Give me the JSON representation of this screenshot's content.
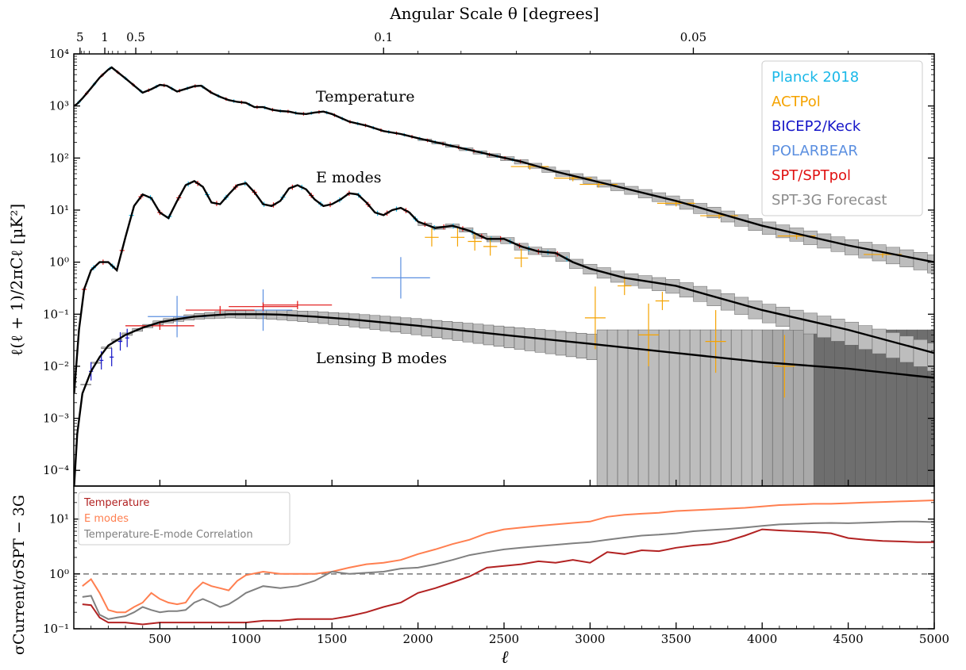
{
  "chart_data": [
    {
      "type": "line",
      "title": "",
      "top_axis_label": "Angular Scale θ [degrees]",
      "top_ticks": [
        "5",
        "1",
        "0.5",
        "0.1",
        "0.05"
      ],
      "xlabel": "",
      "ylabel": "ℓ(ℓ + 1)/2πCℓ [μK²]",
      "xlim": [
        0,
        5000
      ],
      "ylim": [
        5e-05,
        10000
      ],
      "yscale": "log",
      "y_ticks": [
        "10⁻⁴",
        "10⁻³",
        "10⁻²",
        "10⁻¹",
        "10⁰",
        "10¹",
        "10²",
        "10³",
        "10⁴"
      ],
      "annotations": [
        "Temperature",
        "E modes",
        "Lensing B modes"
      ],
      "legend_position": "top-right",
      "legend": [
        {
          "name": "Planck 2018",
          "color": "#1ab8e8"
        },
        {
          "name": "ACTPol",
          "color": "#f5a300"
        },
        {
          "name": "BICEP2/Keck",
          "color": "#1515c8"
        },
        {
          "name": "POLARBEAR",
          "color": "#5b8fe0"
        },
        {
          "name": "SPT/SPTpol",
          "color": "#e01010"
        },
        {
          "name": "SPT-3G Forecast",
          "color": "#8c8c8c"
        }
      ],
      "series": [
        {
          "name": "Temperature",
          "x": [
            2,
            20,
            50,
            100,
            150,
            200,
            220,
            300,
            400,
            450,
            500,
            540,
            600,
            700,
            740,
            800,
            850,
            900,
            950,
            1000,
            1050,
            1100,
            1150,
            1200,
            1250,
            1300,
            1350,
            1400,
            1450,
            1500,
            1600,
            1700,
            1800,
            1900,
            2000,
            2200,
            2400,
            2600,
            2800,
            3000,
            3500,
            4000,
            4500,
            5000
          ],
          "y": [
            1000,
            1100,
            1400,
            2200,
            3500,
            5000,
            5500,
            3400,
            1800,
            2100,
            2550,
            2450,
            1900,
            2400,
            2450,
            1800,
            1500,
            1300,
            1200,
            1150,
            950,
            950,
            850,
            800,
            780,
            720,
            700,
            750,
            780,
            700,
            500,
            420,
            330,
            290,
            240,
            170,
            120,
            85,
            55,
            38,
            15,
            5,
            2.1,
            1.0
          ]
        },
        {
          "name": "E modes",
          "x": [
            2,
            30,
            60,
            100,
            150,
            200,
            250,
            300,
            350,
            400,
            450,
            500,
            550,
            600,
            650,
            700,
            750,
            800,
            850,
            900,
            950,
            1000,
            1050,
            1100,
            1150,
            1200,
            1250,
            1300,
            1350,
            1400,
            1450,
            1500,
            1550,
            1600,
            1650,
            1700,
            1750,
            1800,
            1850,
            1900,
            1950,
            2000,
            2100,
            2200,
            2300,
            2400,
            2500,
            2600,
            2700,
            2800,
            2900,
            3000,
            3200,
            3500,
            4000,
            4500,
            5000
          ],
          "y": [
            0.003,
            0.05,
            0.3,
            0.7,
            1.0,
            1.0,
            0.7,
            3.0,
            12,
            20,
            17,
            9,
            7,
            15,
            30,
            36,
            28,
            14,
            13,
            20,
            30,
            33,
            22,
            13,
            12,
            15,
            26,
            30,
            25,
            16,
            12,
            13,
            16,
            21,
            20,
            14,
            9,
            8,
            10,
            11,
            9,
            6,
            4.5,
            5,
            4,
            2.8,
            2.8,
            2.0,
            1.6,
            1.5,
            1.0,
            0.75,
            0.5,
            0.35,
            0.12,
            0.05,
            0.018
          ]
        },
        {
          "name": "Lensing B modes",
          "x": [
            2,
            20,
            50,
            100,
            150,
            200,
            300,
            400,
            500,
            600,
            700,
            800,
            900,
            1000,
            1100,
            1200,
            1400,
            1600,
            2000,
            2500,
            3000,
            3500,
            4000,
            4500,
            5000
          ],
          "y": [
            5e-05,
            0.0005,
            0.003,
            0.008,
            0.015,
            0.025,
            0.04,
            0.055,
            0.07,
            0.08,
            0.09,
            0.095,
            0.1,
            0.1,
            0.1,
            0.098,
            0.09,
            0.08,
            0.06,
            0.04,
            0.027,
            0.018,
            0.012,
            0.009,
            0.006
          ]
        }
      ]
    },
    {
      "type": "line",
      "title": "",
      "xlabel": "ℓ",
      "ylabel": "σCurrent/σSPT − 3G",
      "xlim": [
        0,
        5000
      ],
      "x_ticks": [
        "500",
        "1000",
        "1500",
        "2000",
        "2500",
        "3000",
        "3500",
        "4000",
        "4500",
        "5000"
      ],
      "ylim": [
        0.1,
        40
      ],
      "yscale": "log",
      "y_ticks": [
        "10⁻¹",
        "10⁰",
        "10¹"
      ],
      "reference_line": 1.0,
      "legend_position": "top-left",
      "series": [
        {
          "name": "Temperature",
          "color": "#b22222",
          "x": [
            50,
            100,
            150,
            200,
            300,
            400,
            500,
            600,
            700,
            800,
            900,
            1000,
            1100,
            1200,
            1300,
            1400,
            1500,
            1600,
            1700,
            1800,
            1900,
            2000,
            2100,
            2200,
            2300,
            2400,
            2500,
            2600,
            2700,
            2800,
            2900,
            3000,
            3100,
            3200,
            3300,
            3400,
            3500,
            3600,
            3700,
            3800,
            3900,
            4000,
            4100,
            4200,
            4300,
            4400,
            4500,
            4600,
            4700,
            4800,
            4900,
            5000
          ],
          "y": [
            0.28,
            0.27,
            0.16,
            0.13,
            0.13,
            0.12,
            0.13,
            0.13,
            0.13,
            0.13,
            0.13,
            0.13,
            0.14,
            0.14,
            0.15,
            0.15,
            0.15,
            0.17,
            0.2,
            0.25,
            0.3,
            0.45,
            0.55,
            0.7,
            0.9,
            1.3,
            1.4,
            1.5,
            1.7,
            1.6,
            1.8,
            1.6,
            2.5,
            2.3,
            2.7,
            2.6,
            3.0,
            3.3,
            3.5,
            4.0,
            5.0,
            6.5,
            6.2,
            6.0,
            5.8,
            5.5,
            4.5,
            4.2,
            4.0,
            3.9,
            3.8,
            3.8
          ]
        },
        {
          "name": "E modes",
          "color": "#ff7f50",
          "x": [
            50,
            100,
            150,
            200,
            250,
            300,
            350,
            400,
            450,
            500,
            550,
            600,
            650,
            700,
            750,
            800,
            850,
            900,
            950,
            1000,
            1100,
            1200,
            1300,
            1400,
            1500,
            1600,
            1700,
            1800,
            1900,
            2000,
            2100,
            2200,
            2300,
            2400,
            2500,
            2600,
            2700,
            2800,
            2900,
            3000,
            3100,
            3200,
            3300,
            3400,
            3500,
            3600,
            3700,
            3800,
            3900,
            4000,
            4100,
            4200,
            4300,
            4400,
            4500,
            4600,
            4700,
            4800,
            4900,
            5000
          ],
          "y": [
            0.6,
            0.8,
            0.45,
            0.22,
            0.2,
            0.2,
            0.25,
            0.3,
            0.45,
            0.35,
            0.3,
            0.28,
            0.3,
            0.5,
            0.7,
            0.6,
            0.55,
            0.5,
            0.75,
            0.95,
            1.1,
            1.0,
            1.0,
            1.0,
            1.1,
            1.3,
            1.5,
            1.6,
            1.8,
            2.3,
            2.8,
            3.5,
            4.2,
            5.5,
            6.5,
            7.0,
            7.5,
            8.0,
            8.5,
            9.0,
            11,
            12,
            12.5,
            13,
            14,
            14.5,
            15,
            15.5,
            16,
            17,
            18,
            18.5,
            19,
            19,
            19.5,
            20,
            20.5,
            21,
            21.5,
            22
          ]
        },
        {
          "name": "Temperature-E-mode Correlation",
          "color": "#808080",
          "x": [
            50,
            100,
            150,
            200,
            250,
            300,
            350,
            400,
            450,
            500,
            550,
            600,
            650,
            700,
            750,
            800,
            850,
            900,
            950,
            1000,
            1100,
            1200,
            1300,
            1400,
            1500,
            1600,
            1700,
            1800,
            1900,
            2000,
            2100,
            2200,
            2300,
            2400,
            2500,
            2600,
            2700,
            2800,
            2900,
            3000,
            3100,
            3200,
            3300,
            3400,
            3500,
            3600,
            3700,
            3800,
            3900,
            4000,
            4100,
            4200,
            4300,
            4400,
            4500,
            4600,
            4700,
            4800,
            4900,
            5000
          ],
          "y": [
            0.38,
            0.4,
            0.18,
            0.15,
            0.16,
            0.17,
            0.2,
            0.25,
            0.22,
            0.2,
            0.21,
            0.21,
            0.22,
            0.3,
            0.35,
            0.3,
            0.25,
            0.28,
            0.35,
            0.45,
            0.6,
            0.55,
            0.6,
            0.75,
            1.1,
            1.0,
            1.05,
            1.1,
            1.25,
            1.3,
            1.5,
            1.8,
            2.2,
            2.5,
            2.8,
            3.0,
            3.2,
            3.4,
            3.6,
            3.8,
            4.2,
            4.6,
            5.0,
            5.2,
            5.5,
            6.0,
            6.3,
            6.6,
            7.0,
            7.5,
            8.0,
            8.2,
            8.4,
            8.5,
            8.4,
            8.6,
            8.8,
            9.0,
            9.0,
            8.8
          ]
        }
      ]
    }
  ]
}
